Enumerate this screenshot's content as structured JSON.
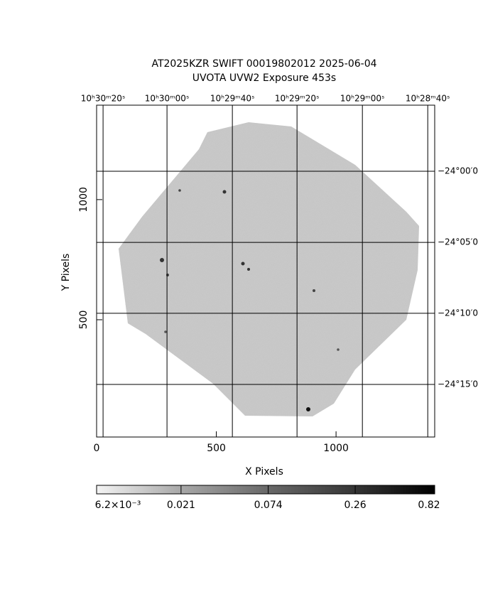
{
  "chart_data": {
    "type": "image",
    "title": [
      "AT2025KZR SWIFT 00019802012 2025-06-04",
      "UVOTA UVW2 Exposure        453s"
    ],
    "xlabel": "X Pixels",
    "ylabel": "Y Pixels",
    "xlim": [
      0,
      1412
    ],
    "ylim": [
      12,
      1393
    ],
    "xticks": [
      0,
      500,
      1000
    ],
    "yticks": [
      500,
      1000
    ],
    "x2ticks": [
      {
        "value": 27,
        "label": "10ʰ30ᵐ20ˢ"
      },
      {
        "value": 294,
        "label": "10ʰ30ᵐ00ˢ"
      },
      {
        "value": 567,
        "label": "10ʰ29ᵐ40ˢ"
      },
      {
        "value": 837,
        "label": "10ʰ29ᵐ20ˢ"
      },
      {
        "value": 1110,
        "label": "10ʰ29ᵐ00ˢ"
      },
      {
        "value": 1383,
        "label": "10ʰ28ᵐ40ˢ"
      }
    ],
    "y2ticks": [
      {
        "value": 1118,
        "label": "−24°00′0"
      },
      {
        "value": 822,
        "label": "−24°05′0"
      },
      {
        "value": 527,
        "label": "−24°10′0"
      },
      {
        "value": 231,
        "label": "−24°15′0"
      }
    ],
    "grid": true,
    "colorbar": {
      "log": true,
      "lim": [
        0.0062,
        0.82
      ],
      "ticks": [
        {
          "value": 0.0062,
          "label": "6.2×10⁻³"
        },
        0.021,
        0.074,
        0.26,
        0.82
      ]
    }
  }
}
